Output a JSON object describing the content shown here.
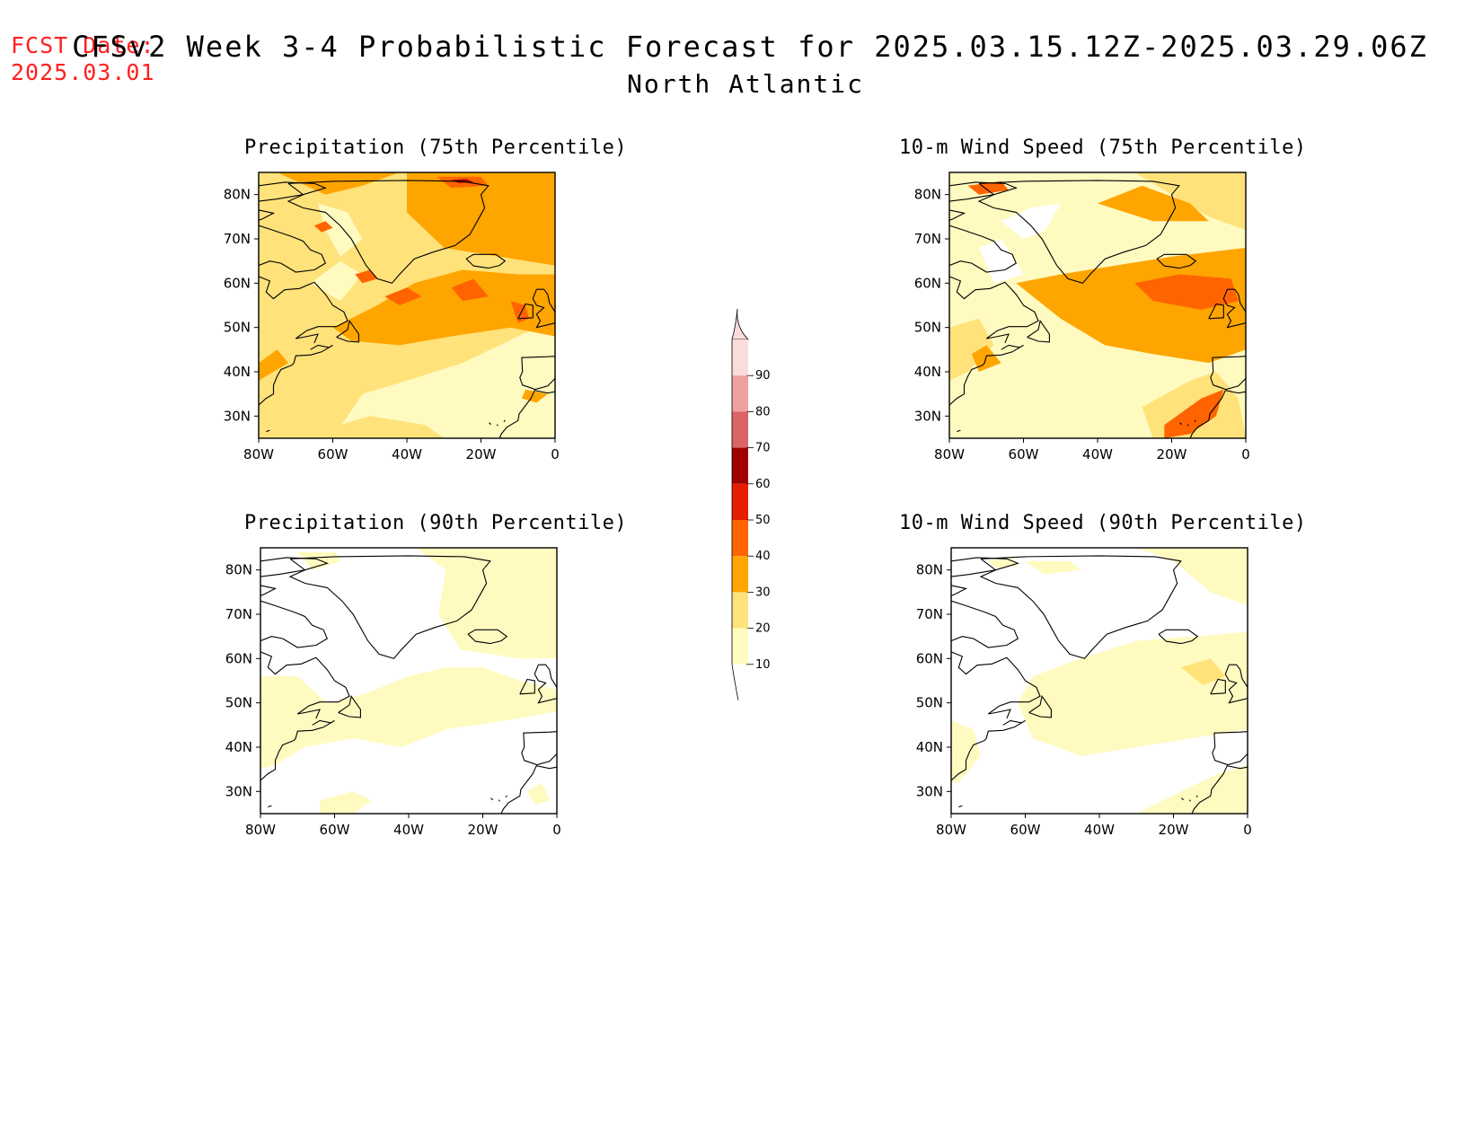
{
  "header": {
    "fcst_label": "FCST Date:",
    "fcst_date": "2025.03.01",
    "title": "CFSv2 Week 3-4 Probabilistic Forecast for 2025.03.15.12Z-2025.03.29.06Z",
    "region": "North Atlantic"
  },
  "colors": {
    "10": "#fffac0",
    "20": "#ffe27a",
    "30": "#ffa500",
    "40": "#ff6400",
    "50": "#e61e00",
    "60": "#a00000",
    "70": "#dc6464",
    "80": "#f0a0a0",
    "90": "#fadcdc"
  },
  "axes": {
    "lat_labels": [
      "80N",
      "70N",
      "60N",
      "50N",
      "40N",
      "30N"
    ],
    "lon_labels": [
      "80W",
      "60W",
      "40W",
      "20W",
      "0"
    ]
  },
  "panels": [
    {
      "id": "precip75",
      "title": "Precipitation (75th Percentile)",
      "background_level": "10",
      "fill_levels": [
        "20",
        "30",
        "40",
        "60"
      ]
    },
    {
      "id": "wind75",
      "title": "10-m Wind Speed (75th Percentile)",
      "background_level": "10",
      "fill_levels": [
        "20",
        "30",
        "40"
      ]
    },
    {
      "id": "precip90",
      "title": "Precipitation (90th Percentile)",
      "background_level": "10",
      "fill_levels": []
    },
    {
      "id": "wind90",
      "title": "10-m Wind Speed (90th Percentile)",
      "background_level": "10",
      "fill_levels": [
        "20"
      ]
    }
  ],
  "legend": {
    "labels": [
      "90",
      "80",
      "70",
      "60",
      "50",
      "40",
      "30",
      "20",
      "10"
    ]
  }
}
